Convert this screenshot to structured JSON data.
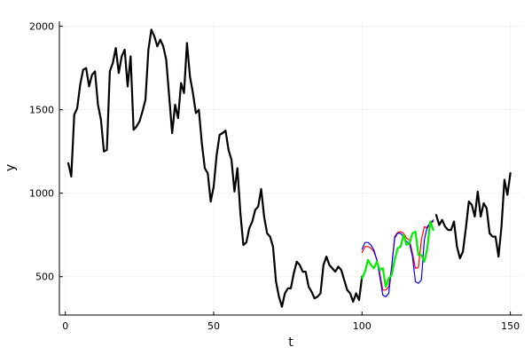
{
  "chart_data": {
    "type": "line",
    "xlabel": "t",
    "ylabel": "y",
    "xlim": [
      -2,
      154
    ],
    "ylim": [
      270,
      2030
    ],
    "x_ticks": [
      0,
      50,
      100,
      150
    ],
    "y_ticks": [
      500,
      1000,
      1500,
      2000
    ],
    "grid": true,
    "legend": "none",
    "series": [
      {
        "color": "#000000",
        "stroke_width": 2.2,
        "x": [
          1,
          2,
          3,
          4,
          5,
          6,
          7,
          8,
          9,
          10,
          11,
          12,
          13,
          14,
          15,
          16,
          17,
          18,
          19,
          20,
          21,
          22,
          23,
          24,
          25,
          26,
          27,
          28,
          29,
          30,
          31,
          32,
          33,
          34,
          35,
          36,
          37,
          38,
          39,
          40,
          41,
          42,
          43,
          44,
          45,
          46,
          47,
          48,
          49,
          50,
          51,
          52,
          53,
          54,
          55,
          56,
          57,
          58,
          59,
          60,
          61,
          62,
          63,
          64,
          65,
          66,
          67,
          68,
          69,
          70,
          71,
          72,
          73,
          74,
          75,
          76,
          77,
          78,
          79,
          80,
          81,
          82,
          83,
          84,
          85,
          86,
          87,
          88,
          89,
          90,
          91,
          92,
          93,
          94,
          95,
          96,
          97,
          98,
          99,
          100
        ],
        "y": [
          1180,
          1100,
          1470,
          1510,
          1650,
          1740,
          1750,
          1640,
          1710,
          1730,
          1530,
          1440,
          1250,
          1260,
          1730,
          1780,
          1870,
          1720,
          1820,
          1860,
          1640,
          1820,
          1380,
          1400,
          1430,
          1490,
          1560,
          1860,
          1980,
          1940,
          1880,
          1920,
          1880,
          1800,
          1580,
          1360,
          1530,
          1450,
          1660,
          1600,
          1900,
          1700,
          1600,
          1480,
          1500,
          1300,
          1150,
          1120,
          950,
          1040,
          1230,
          1350,
          1360,
          1375,
          1260,
          1200,
          1010,
          1150,
          880,
          690,
          705,
          790,
          830,
          900,
          920,
          1025,
          860,
          760,
          740,
          680,
          470,
          380,
          320,
          400,
          430,
          430,
          520,
          590,
          570,
          530,
          530,
          440,
          410,
          370,
          380,
          400,
          570,
          620,
          570,
          550,
          530,
          560,
          540,
          480,
          420,
          400,
          350,
          400,
          360,
          500
        ]
      },
      {
        "color": "#000000",
        "stroke_width": 2.2,
        "x": [
          125,
          126,
          127,
          128,
          129,
          130,
          131,
          132,
          133,
          134,
          135,
          136,
          137,
          138,
          139,
          140,
          141,
          142,
          143,
          144,
          145,
          146,
          147,
          148,
          149,
          150
        ],
        "y": [
          870,
          810,
          840,
          800,
          780,
          780,
          830,
          680,
          610,
          650,
          790,
          950,
          930,
          860,
          1010,
          860,
          940,
          910,
          760,
          740,
          740,
          620,
          800,
          1080,
          990,
          1120
        ]
      },
      {
        "color": "#ff0000",
        "stroke_width": 1.2,
        "x": [
          100,
          101,
          102,
          103,
          104,
          105,
          106,
          107,
          108,
          109,
          110,
          111,
          112,
          113,
          114,
          115,
          116,
          117,
          118,
          119,
          120,
          121,
          122,
          123,
          124
        ],
        "y": [
          645,
          680,
          680,
          670,
          650,
          600,
          520,
          420,
          420,
          440,
          560,
          740,
          765,
          770,
          760,
          730,
          720,
          640,
          550,
          555,
          720,
          800,
          790,
          820,
          830
        ]
      },
      {
        "color": "#0000ff",
        "stroke_width": 1.2,
        "x": [
          100,
          101,
          102,
          103,
          104,
          105,
          106,
          107,
          108,
          109,
          110,
          111,
          112,
          113,
          114,
          115,
          116,
          117,
          118,
          119,
          120,
          121,
          122,
          123,
          124
        ],
        "y": [
          665,
          705,
          705,
          690,
          660,
          600,
          500,
          390,
          380,
          400,
          560,
          730,
          760,
          760,
          740,
          710,
          700,
          620,
          470,
          460,
          480,
          720,
          800,
          820,
          840
        ]
      },
      {
        "color": "#00ee00",
        "stroke_width": 2.2,
        "x": [
          100,
          101,
          102,
          103,
          104,
          105,
          106,
          107,
          108,
          109,
          110,
          111,
          112,
          113,
          114,
          115,
          116,
          117,
          118,
          119,
          120,
          121,
          122,
          123,
          124
        ],
        "y": [
          490,
          530,
          600,
          570,
          550,
          590,
          540,
          550,
          440,
          490,
          510,
          600,
          670,
          680,
          750,
          690,
          700,
          760,
          770,
          630,
          630,
          590,
          670,
          830,
          780
        ]
      }
    ]
  }
}
